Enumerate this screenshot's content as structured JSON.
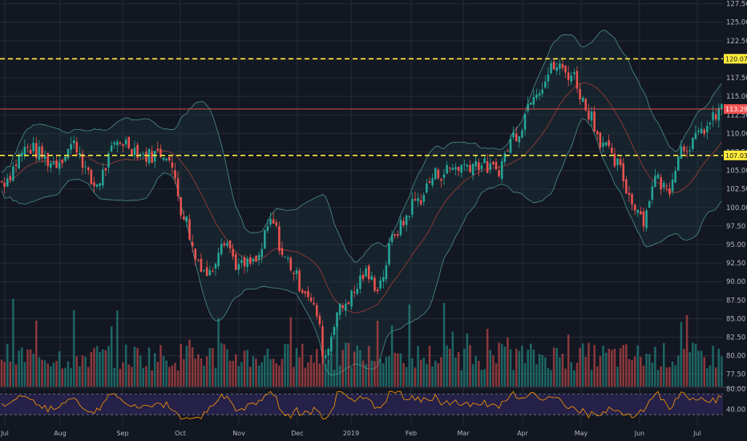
{
  "chart_data": {
    "type": "candlestick",
    "price_axis": {
      "ylim": [
        75.85,
        128.0
      ],
      "ticks": [
        "127.50",
        "125.00",
        "122.50",
        "120.00",
        "117.50",
        "115.00",
        "112.50",
        "110.00",
        "107.50",
        "105.00",
        "102.50",
        "100.00",
        "97.50",
        "95.00",
        "92.50",
        "90.00",
        "87.50",
        "85.00",
        "82.50",
        "80.00",
        "77.50"
      ]
    },
    "x_axis_labels": [
      "Jul",
      "Aug",
      "Sep",
      "Oct",
      "Nov",
      "Dec",
      "2019",
      "Feb",
      "Mar",
      "Apr",
      "May",
      "Jun",
      "Jul"
    ],
    "horizontal_levels": [
      {
        "label": "120.07",
        "value": 120.07,
        "style": "dashed",
        "color": "#ffeb3b"
      },
      {
        "label": "107.03",
        "value": 107.03,
        "style": "dashed",
        "color": "#ffeb3b"
      },
      {
        "label": "113.29",
        "value": 113.29,
        "style": "solid",
        "color": "#f05350"
      }
    ],
    "price_anchors": [
      [
        0,
        103.5
      ],
      [
        20,
        108
      ],
      [
        40,
        106
      ],
      [
        55,
        108.5
      ],
      [
        70,
        103
      ],
      [
        90,
        109
      ],
      [
        110,
        107
      ],
      [
        125,
        107.5
      ],
      [
        130,
        104.5
      ],
      [
        138,
        99
      ],
      [
        148,
        93
      ],
      [
        157,
        91
      ],
      [
        168,
        96
      ],
      [
        180,
        92
      ],
      [
        192,
        92.5
      ],
      [
        205,
        98
      ],
      [
        215,
        93
      ],
      [
        230,
        89
      ],
      [
        238,
        86
      ],
      [
        245,
        80
      ],
      [
        255,
        86
      ],
      [
        265,
        88
      ],
      [
        275,
        91
      ],
      [
        285,
        89.5
      ],
      [
        300,
        97
      ],
      [
        315,
        101
      ],
      [
        330,
        104.5
      ],
      [
        345,
        105.5
      ],
      [
        360,
        106
      ],
      [
        375,
        105
      ],
      [
        390,
        110
      ],
      [
        405,
        116
      ],
      [
        420,
        119
      ],
      [
        432,
        118
      ],
      [
        445,
        113
      ],
      [
        455,
        109
      ],
      [
        465,
        106
      ],
      [
        480,
        100.5
      ],
      [
        487,
        98.5
      ],
      [
        495,
        104
      ],
      [
        505,
        102.5
      ],
      [
        515,
        108
      ],
      [
        525,
        109
      ],
      [
        535,
        111
      ],
      [
        546,
        113.3
      ]
    ],
    "bollinger_band": "shown",
    "volume": {
      "shown": true,
      "up_color": "#26a69a",
      "down_color": "#ef5350"
    },
    "rsi": {
      "ticks": [
        "80.00",
        "40.00"
      ],
      "ylim": [
        10,
        80
      ],
      "upper_band": 70,
      "lower_band": 30
    },
    "colors": {
      "up": "#26a69a",
      "down": "#ef5350",
      "background": "#131722",
      "grid": "#262b37",
      "band": "#4a8f8a",
      "rsi_line": "#ff9800",
      "rsi_fill": "#2a2454"
    }
  }
}
